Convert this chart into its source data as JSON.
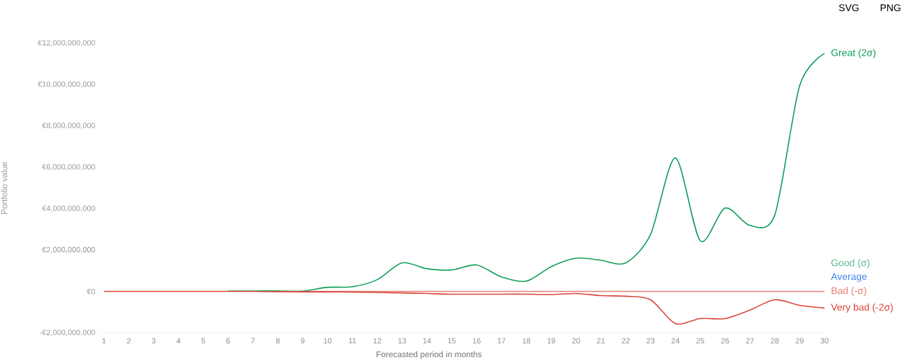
{
  "chart_data": {
    "type": "line",
    "xlabel": "Forecasted period in months",
    "ylabel": "Portfolio value",
    "x": [
      1,
      2,
      3,
      4,
      5,
      6,
      7,
      8,
      9,
      10,
      11,
      12,
      13,
      14,
      15,
      16,
      17,
      18,
      19,
      20,
      21,
      22,
      23,
      24,
      25,
      26,
      27,
      28,
      29,
      30
    ],
    "series": [
      {
        "name": "Great (2σ)",
        "color": "#0f9d58",
        "values": [
          null,
          null,
          null,
          null,
          null,
          20000000,
          20000000,
          30000000,
          20000000,
          200000000,
          230000000,
          570000000,
          1380000000,
          1100000000,
          1040000000,
          1280000000,
          700000000,
          500000000,
          1200000000,
          1610000000,
          1510000000,
          1380000000,
          2760000000,
          6450000000,
          2450000000,
          4030000000,
          3190000000,
          3700000000,
          9950000000,
          11500000000
        ]
      },
      {
        "name": "Good (σ)",
        "color": "#57bb8a",
        "values": [
          null,
          null,
          null,
          null,
          null,
          null,
          null,
          null,
          null,
          null,
          null,
          null,
          null,
          null,
          null,
          null,
          null,
          null,
          null,
          null,
          null,
          null,
          null,
          null,
          null,
          null,
          null,
          null,
          null,
          null
        ]
      },
      {
        "name": "Average",
        "color": "#4285f4",
        "values": [
          null,
          null,
          null,
          null,
          null,
          null,
          null,
          null,
          null,
          null,
          null,
          null,
          null,
          null,
          null,
          null,
          null,
          null,
          null,
          null,
          null,
          null,
          null,
          null,
          null,
          null,
          null,
          null,
          null,
          null
        ]
      },
      {
        "name": "Bad (-σ)",
        "color": "#e67c73",
        "values": [
          null,
          null,
          null,
          null,
          null,
          null,
          null,
          0,
          0,
          0,
          0,
          0,
          0,
          0,
          0,
          0,
          0,
          0,
          0,
          0,
          0,
          0,
          0,
          0,
          0,
          0,
          0,
          0,
          0,
          0
        ]
      },
      {
        "name": "Very bad (-2σ)",
        "color": "#db4437",
        "values": [
          0,
          0,
          0,
          0,
          0,
          0,
          0,
          -10000000,
          -20000000,
          -20000000,
          -30000000,
          -50000000,
          -70000000,
          -100000000,
          -130000000,
          -130000000,
          -130000000,
          -130000000,
          -150000000,
          -100000000,
          -200000000,
          -230000000,
          -400000000,
          -1550000000,
          -1310000000,
          -1310000000,
          -900000000,
          -400000000,
          -670000000,
          -800000000
        ]
      }
    ],
    "xlim": [
      1,
      30
    ],
    "ylim": [
      -2000000000,
      12000000000
    ],
    "xticks": [
      1,
      2,
      3,
      4,
      5,
      6,
      7,
      8,
      9,
      10,
      11,
      12,
      13,
      14,
      15,
      16,
      17,
      18,
      19,
      20,
      21,
      22,
      23,
      24,
      25,
      26,
      27,
      28,
      29,
      30
    ],
    "yticks": [
      {
        "value": -2000000000,
        "label": "-€2,000,000,000"
      },
      {
        "value": 0,
        "label": "€0"
      },
      {
        "value": 2000000000,
        "label": "€2,000,000,000"
      },
      {
        "value": 4000000000,
        "label": "€4,000,000,000"
      },
      {
        "value": 6000000000,
        "label": "€6,000,000,000"
      },
      {
        "value": 8000000000,
        "label": "€8,000,000,000"
      },
      {
        "value": 10000000000,
        "label": "€10,000,000,000"
      },
      {
        "value": 12000000000,
        "label": "€12,000,000,000"
      }
    ],
    "grid": false,
    "marker": "none",
    "line_style": "solid",
    "annotations": [
      "SVG",
      "PNG"
    ]
  }
}
